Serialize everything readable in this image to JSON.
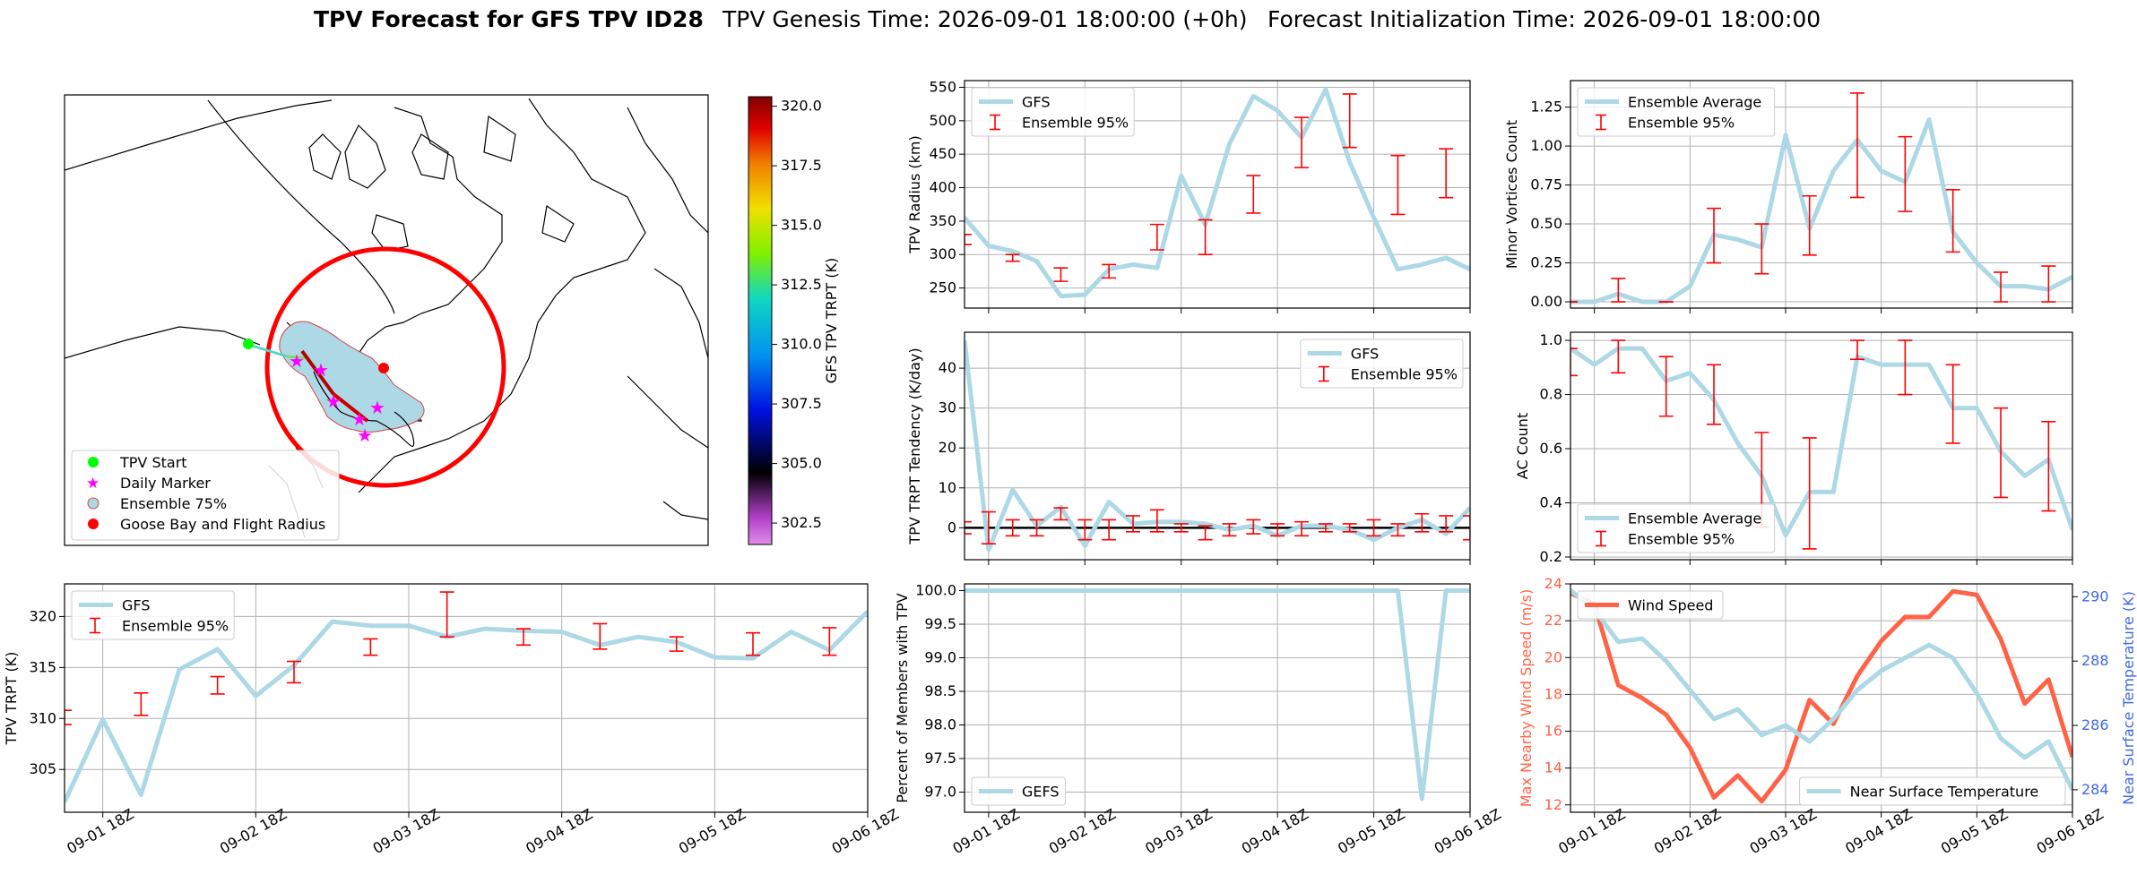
{
  "header": {
    "title": "TPV Forecast for GFS TPV ID28",
    "genesis": "TPV Genesis Time: 2026-09-01 18:00:00 (+0h)",
    "init": "Forecast Initialization Time: 2026-09-01 18:00:00"
  },
  "colors": {
    "gfs": "#add8e6",
    "ens": "#ff0000",
    "wind": "#ff6347",
    "temp_axis": "#4169e1",
    "ens75_fill": "#add8e6",
    "daily": "#ff00ff",
    "start": "#00ff00",
    "goose": "#ff0000"
  },
  "time_ticks": [
    "09-01 18Z",
    "09-02 18Z",
    "09-03 18Z",
    "09-04 18Z",
    "09-05 18Z",
    "09-06 18Z"
  ],
  "map": {
    "colorbar": {
      "label": "GFS TPV TRPT (K)",
      "ticks": [
        "302.5",
        "305.0",
        "307.5",
        "310.0",
        "312.5",
        "315.0",
        "317.5",
        "320.0"
      ],
      "min": 301.6,
      "max": 320.4
    },
    "legend": [
      {
        "label": "TPV Start",
        "icon": "green-dot"
      },
      {
        "label": "Daily Marker",
        "icon": "magenta-star"
      },
      {
        "label": "Ensemble 75%",
        "icon": "blue-patch"
      },
      {
        "label": "Goose Bay and Flight Radius",
        "icon": "red-dot"
      }
    ]
  },
  "chart_data": [
    {
      "id": "trpt",
      "type": "line",
      "ylabel": "TPV TRPT (K)",
      "ylim": [
        300.8,
        323.2
      ],
      "yticks": [
        305,
        310,
        315,
        320
      ],
      "grid": true,
      "legend_loc": "upper left",
      "series": [
        {
          "name": "GFS",
          "x": [
            0,
            6,
            12,
            18,
            24,
            30,
            36,
            42,
            48,
            54,
            60,
            66,
            72,
            78,
            84,
            90,
            96,
            102,
            108,
            114,
            120,
            126
          ],
          "values": [
            301.8,
            309.9,
            302.5,
            314.8,
            316.8,
            312.2,
            315.2,
            319.5,
            319.1,
            319.1,
            318.0,
            318.8,
            318.6,
            318.5,
            317.2,
            318.0,
            317.5,
            316.0,
            315.9,
            318.5,
            316.7,
            320.5
          ]
        },
        {
          "name": "Ensemble 95%",
          "kind": "errorbar",
          "x": [
            0,
            12,
            24,
            36,
            48,
            60,
            72,
            84,
            96,
            108,
            120
          ],
          "low": [
            309.4,
            310.3,
            312.4,
            313.5,
            316.2,
            318.0,
            317.2,
            316.8,
            316.6,
            316.2,
            316.2
          ],
          "high": [
            310.8,
            312.5,
            314.1,
            315.6,
            317.8,
            322.4,
            318.8,
            319.3,
            318.0,
            318.4,
            318.9
          ]
        }
      ]
    },
    {
      "id": "radius",
      "type": "line",
      "ylabel": "TPV Radius (km)",
      "ylim": [
        220,
        560
      ],
      "yticks": [
        250,
        300,
        350,
        400,
        450,
        500,
        550
      ],
      "grid": true,
      "legend_loc": "upper left",
      "series": [
        {
          "name": "GFS",
          "x": [
            0,
            6,
            12,
            18,
            24,
            30,
            36,
            42,
            48,
            54,
            60,
            66,
            72,
            78,
            84,
            90,
            96,
            102,
            108,
            114,
            120,
            126
          ],
          "values": [
            355,
            313,
            305,
            290,
            238,
            240,
            278,
            285,
            280,
            418,
            345,
            465,
            537,
            515,
            475,
            547,
            438,
            355,
            278,
            285,
            295,
            278
          ]
        },
        {
          "name": "Ensemble 95%",
          "kind": "errorbar",
          "x": [
            0,
            12,
            24,
            36,
            48,
            60,
            72,
            84,
            96,
            108,
            120
          ],
          "low": [
            315,
            290,
            260,
            265,
            307,
            300,
            362,
            430,
            460,
            360,
            385
          ],
          "high": [
            330,
            300,
            280,
            285,
            345,
            352,
            418,
            505,
            540,
            448,
            458
          ]
        }
      ]
    },
    {
      "id": "tendency",
      "type": "line",
      "ylabel": "TPV TRPT Tendency (K/day)",
      "ylim": [
        -8,
        49
      ],
      "yticks": [
        0,
        10,
        20,
        30,
        40
      ],
      "grid": true,
      "legend_loc": "upper right",
      "zero_line": true,
      "series": [
        {
          "name": "GFS",
          "x": [
            0,
            6,
            12,
            18,
            24,
            30,
            36,
            42,
            48,
            54,
            60,
            66,
            72,
            78,
            84,
            90,
            96,
            102,
            108,
            114,
            120,
            126
          ],
          "values": [
            47.0,
            -5.5,
            9.5,
            0.5,
            5.2,
            -4.5,
            6.5,
            1.0,
            1.5,
            1.5,
            1.0,
            -0.5,
            0.5,
            -2.0,
            0.5,
            0.5,
            -0.5,
            -3.0,
            0.0,
            2.0,
            -1.5,
            5.0
          ]
        },
        {
          "name": "Ensemble 95%",
          "kind": "errorbar",
          "x": [
            0,
            6,
            12,
            18,
            24,
            30,
            36,
            42,
            48,
            54,
            60,
            66,
            72,
            78,
            84,
            90,
            96,
            102,
            108,
            114,
            120,
            126
          ],
          "low": [
            -1.5,
            -4.0,
            -2.0,
            -2.0,
            2.0,
            -3.0,
            -3.0,
            -1.0,
            -1.0,
            -1.0,
            -3.0,
            -2.0,
            -1.5,
            -2.0,
            -2.0,
            -1.0,
            -1.0,
            -2.0,
            -2.0,
            -1.0,
            -1.0,
            -3.0
          ],
          "high": [
            1.5,
            4.0,
            2.0,
            2.0,
            5.0,
            2.0,
            2.0,
            3.0,
            4.5,
            1.0,
            0.5,
            1.0,
            2.0,
            1.0,
            1.5,
            1.0,
            1.0,
            2.0,
            1.0,
            3.5,
            3.0,
            3.0
          ]
        }
      ]
    },
    {
      "id": "members",
      "type": "line",
      "ylabel": "Percent of Members with TPV",
      "ylim": [
        96.7,
        100.1
      ],
      "yticks": [
        97.0,
        97.5,
        98.0,
        98.5,
        99.0,
        99.5,
        100.0
      ],
      "grid": true,
      "legend_loc": "lower left",
      "series": [
        {
          "name": "GEFS",
          "x": [
            0,
            6,
            12,
            18,
            24,
            30,
            36,
            42,
            48,
            54,
            60,
            66,
            72,
            78,
            84,
            90,
            96,
            102,
            108,
            114,
            120,
            126
          ],
          "values": [
            100,
            100,
            100,
            100,
            100,
            100,
            100,
            100,
            100,
            100,
            100,
            100,
            100,
            100,
            100,
            100,
            100,
            100,
            100,
            96.9,
            100,
            100
          ]
        }
      ]
    },
    {
      "id": "minor",
      "type": "line",
      "ylabel": "Minor Vortices Count",
      "ylim": [
        -0.04,
        1.42
      ],
      "yticks": [
        0.0,
        0.25,
        0.5,
        0.75,
        1.0,
        1.25
      ],
      "grid": true,
      "legend_loc": "upper left",
      "series": [
        {
          "name": "Ensemble Average",
          "x": [
            0,
            6,
            12,
            18,
            24,
            30,
            36,
            42,
            48,
            54,
            60,
            66,
            72,
            78,
            84,
            90,
            96,
            102,
            108,
            114,
            120,
            126
          ],
          "values": [
            0.0,
            0.0,
            0.05,
            0.0,
            0.0,
            0.1,
            0.43,
            0.4,
            0.35,
            1.07,
            0.47,
            0.84,
            1.04,
            0.84,
            0.77,
            1.17,
            0.45,
            0.25,
            0.1,
            0.1,
            0.08,
            0.16
          ]
        },
        {
          "name": "Ensemble 95%",
          "kind": "errorbar",
          "x": [
            0,
            12,
            24,
            36,
            48,
            60,
            72,
            84,
            96,
            108,
            120
          ],
          "low": [
            0.0,
            0.0,
            0.0,
            0.25,
            0.18,
            0.3,
            0.67,
            0.58,
            0.32,
            0.0,
            0.0
          ],
          "high": [
            0.0,
            0.15,
            0.0,
            0.6,
            0.5,
            0.68,
            1.34,
            1.06,
            0.72,
            0.19,
            0.23
          ]
        }
      ]
    },
    {
      "id": "ac",
      "type": "line",
      "ylabel": "AC Count",
      "ylim": [
        0.19,
        1.03
      ],
      "yticks": [
        0.2,
        0.4,
        0.6,
        0.8,
        1.0
      ],
      "grid": true,
      "legend_loc": "lower left",
      "series": [
        {
          "name": "Ensemble Average",
          "x": [
            0,
            6,
            12,
            18,
            24,
            30,
            36,
            42,
            48,
            54,
            60,
            66,
            72,
            78,
            84,
            90,
            96,
            102,
            108,
            114,
            120,
            126
          ],
          "values": [
            0.97,
            0.91,
            0.97,
            0.97,
            0.85,
            0.88,
            0.78,
            0.62,
            0.5,
            0.28,
            0.44,
            0.44,
            0.94,
            0.91,
            0.91,
            0.91,
            0.75,
            0.75,
            0.59,
            0.5,
            0.56,
            0.3
          ]
        },
        {
          "name": "Ensemble 95%",
          "kind": "errorbar",
          "x": [
            0,
            12,
            24,
            36,
            48,
            60,
            72,
            84,
            96,
            108,
            120
          ],
          "low": [
            0.87,
            0.88,
            0.72,
            0.69,
            0.31,
            0.23,
            0.93,
            0.8,
            0.62,
            0.42,
            0.37
          ],
          "high": [
            0.97,
            1.0,
            0.94,
            0.91,
            0.66,
            0.64,
            1.0,
            1.0,
            0.91,
            0.75,
            0.7
          ]
        }
      ]
    },
    {
      "id": "wind",
      "type": "line",
      "ylabel": "Max Nearby Wind Speed (m/s)",
      "ylabel_right": "Near Surface Temperature (K)",
      "ylim": [
        11.6,
        24
      ],
      "yticks": [
        12,
        14,
        16,
        18,
        20,
        22,
        24
      ],
      "ylim_right": [
        283.3,
        290.4
      ],
      "yticks_right": [
        284,
        286,
        288,
        290
      ],
      "grid": true,
      "legend_loc": "upper left",
      "legend_loc_right": "lower right",
      "series": [
        {
          "name": "Wind Speed",
          "axis": "left",
          "x": [
            0,
            6,
            12,
            18,
            24,
            30,
            36,
            42,
            48,
            54,
            60,
            66,
            72,
            78,
            84,
            90,
            96,
            102,
            108,
            114,
            120,
            126
          ],
          "values": [
            23.5,
            22.9,
            18.5,
            17.8,
            16.9,
            15.1,
            12.4,
            13.6,
            12.2,
            13.9,
            17.7,
            16.4,
            19.0,
            20.9,
            22.2,
            22.2,
            23.6,
            23.4,
            21.0,
            17.5,
            18.8,
            14.6
          ]
        },
        {
          "name": "Near Surface Temperature",
          "axis": "right",
          "x": [
            0,
            6,
            12,
            18,
            24,
            30,
            36,
            42,
            48,
            54,
            60,
            66,
            72,
            78,
            84,
            90,
            96,
            102,
            108,
            114,
            120,
            126
          ],
          "values": [
            290.2,
            289.6,
            288.6,
            288.7,
            288.0,
            287.1,
            286.2,
            286.5,
            285.7,
            286.0,
            285.5,
            286.2,
            287.1,
            287.7,
            288.1,
            288.5,
            288.1,
            287.0,
            285.6,
            285.0,
            285.5,
            284.0
          ]
        }
      ]
    }
  ]
}
